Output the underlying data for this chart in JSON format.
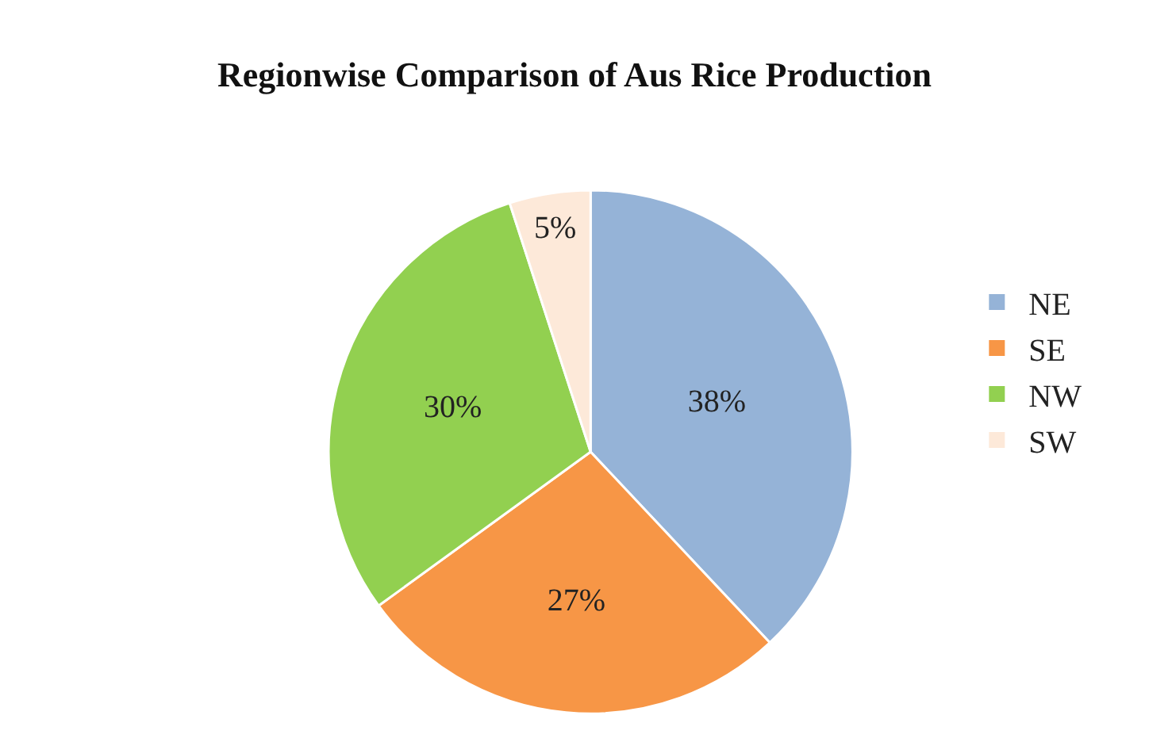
{
  "chart_data": {
    "type": "pie",
    "title": "Regionwise Comparison of Aus Rice Production",
    "categories": [
      "NE",
      "SE",
      "NW",
      "SW"
    ],
    "values": [
      38,
      27,
      30,
      5
    ],
    "value_labels": [
      "38%",
      "27%",
      "30%",
      "5%"
    ],
    "colors": [
      "#95b3d7",
      "#f79646",
      "#92d050",
      "#fde9d9"
    ],
    "legend": "right"
  }
}
